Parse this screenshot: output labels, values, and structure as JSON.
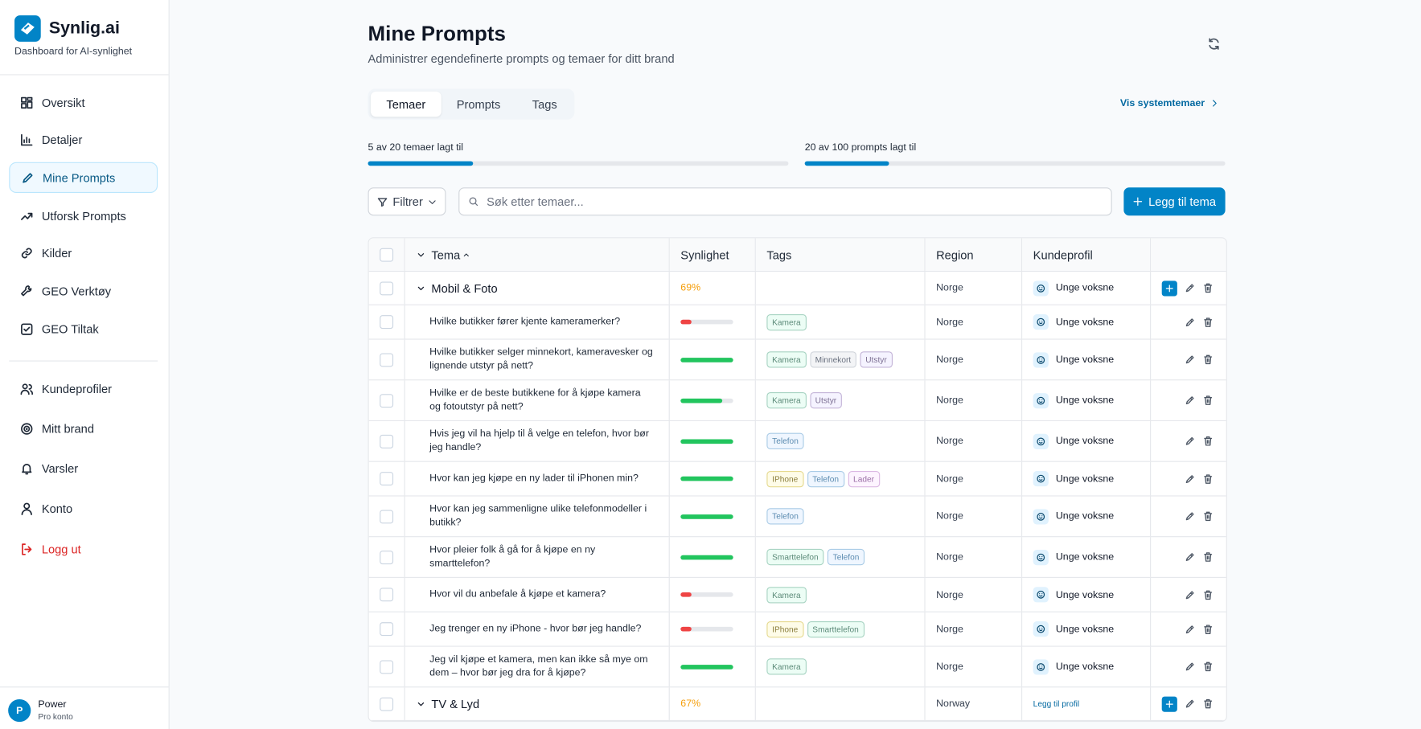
{
  "sidebar": {
    "brand": "Synlig.ai",
    "tagline": "Dashboard for AI-synlighet",
    "nav": [
      {
        "label": "Oversikt",
        "icon": "grid"
      },
      {
        "label": "Detaljer",
        "icon": "chart"
      },
      {
        "label": "Mine Prompts",
        "icon": "pen",
        "active": true
      },
      {
        "label": "Utforsk Prompts",
        "icon": "trend"
      },
      {
        "label": "Kilder",
        "icon": "link"
      },
      {
        "label": "GEO Verktøy",
        "icon": "wrench"
      },
      {
        "label": "GEO Tiltak",
        "icon": "check"
      }
    ],
    "nav2": [
      {
        "label": "Kundeprofiler",
        "icon": "users"
      },
      {
        "label": "Mitt brand",
        "icon": "target"
      },
      {
        "label": "Varsler",
        "icon": "bell"
      },
      {
        "label": "Konto",
        "icon": "user"
      },
      {
        "label": "Logg ut",
        "icon": "logout",
        "danger": true
      }
    ],
    "user": {
      "initial": "P",
      "name": "Power",
      "plan": "Pro konto"
    }
  },
  "header": {
    "title": "Mine Prompts",
    "subtitle": "Administrer egendefinerte prompts og temaer for ditt brand"
  },
  "tabs": [
    {
      "label": "Temaer",
      "active": true
    },
    {
      "label": "Prompts"
    },
    {
      "label": "Tags"
    }
  ],
  "system_link": "Vis systemtemaer",
  "progress": [
    {
      "label": "5 av 20 temaer lagt til",
      "fill": 25
    },
    {
      "label": "20 av 100 prompts lagt til",
      "fill": 20
    }
  ],
  "toolbar": {
    "filter": "Filtrer",
    "search_placeholder": "Søk etter temaer...",
    "add": "Legg til tema"
  },
  "table": {
    "columns": [
      "Tema",
      "Synlighet",
      "Tags",
      "Region",
      "Kundeprofil"
    ],
    "groups": [
      {
        "name": "Mobil & Foto",
        "visibility": "69%",
        "region": "Norge",
        "profile": "Unge voksne",
        "prompts": [
          {
            "text": "Hvilke butikker fører kjente kameramerker?",
            "visibility": 20,
            "tags": [
              {
                "label": "Kamera",
                "tone": "green"
              }
            ],
            "region": "Norge",
            "profile": "Unge voksne"
          },
          {
            "text": "Hvilke butikker selger minnekort, kameravesker og lignende utstyr på nett?",
            "visibility": 100,
            "tags": [
              {
                "label": "Kamera",
                "tone": "green"
              },
              {
                "label": "Minnekort",
                "tone": "gray"
              },
              {
                "label": "Utstyr",
                "tone": "violet"
              }
            ],
            "region": "Norge",
            "profile": "Unge voksne"
          },
          {
            "text": "Hvilke er de beste butikkene for å kjøpe kamera og fotoutstyr på nett?",
            "visibility": 80,
            "tags": [
              {
                "label": "Kamera",
                "tone": "green"
              },
              {
                "label": "Utstyr",
                "tone": "violet"
              }
            ],
            "region": "Norge",
            "profile": "Unge voksne"
          },
          {
            "text": "Hvis jeg vil ha hjelp til å velge en telefon, hvor bør jeg handle?",
            "visibility": 100,
            "tags": [
              {
                "label": "Telefon",
                "tone": "blue"
              }
            ],
            "region": "Norge",
            "profile": "Unge voksne"
          },
          {
            "text": "Hvor kan jeg kjøpe en ny lader til iPhonen min?",
            "visibility": 100,
            "tags": [
              {
                "label": "IPhone",
                "tone": "yellow"
              },
              {
                "label": "Telefon",
                "tone": "blue"
              },
              {
                "label": "Lader",
                "tone": "pink"
              }
            ],
            "region": "Norge",
            "profile": "Unge voksne"
          },
          {
            "text": "Hvor kan jeg sammenligne ulike telefonmodeller i butikk?",
            "visibility": 100,
            "tags": [
              {
                "label": "Telefon",
                "tone": "blue"
              }
            ],
            "region": "Norge",
            "profile": "Unge voksne"
          },
          {
            "text": "Hvor pleier folk å gå for å kjøpe en ny smarttelefon?",
            "visibility": 100,
            "tags": [
              {
                "label": "Smarttelefon",
                "tone": "green"
              },
              {
                "label": "Telefon",
                "tone": "blue"
              }
            ],
            "region": "Norge",
            "profile": "Unge voksne"
          },
          {
            "text": "Hvor vil du anbefale å kjøpe et kamera?",
            "visibility": 20,
            "tags": [
              {
                "label": "Kamera",
                "tone": "green"
              }
            ],
            "region": "Norge",
            "profile": "Unge voksne"
          },
          {
            "text": "Jeg trenger en ny iPhone - hvor bør jeg handle?",
            "visibility": 20,
            "tags": [
              {
                "label": "IPhone",
                "tone": "yellow"
              },
              {
                "label": "Smarttelefon",
                "tone": "green"
              }
            ],
            "region": "Norge",
            "profile": "Unge voksne"
          },
          {
            "text": "Jeg vil kjøpe et kamera, men kan ikke så mye om dem – hvor bør jeg dra for å kjøpe?",
            "visibility": 100,
            "tags": [
              {
                "label": "Kamera",
                "tone": "green"
              }
            ],
            "region": "Norge",
            "profile": "Unge voksne"
          }
        ]
      },
      {
        "name": "TV & Lyd",
        "visibility": "67%",
        "region": "Norway",
        "profile": "Legg til profil",
        "profile_missing": true,
        "prompts": []
      }
    ]
  }
}
